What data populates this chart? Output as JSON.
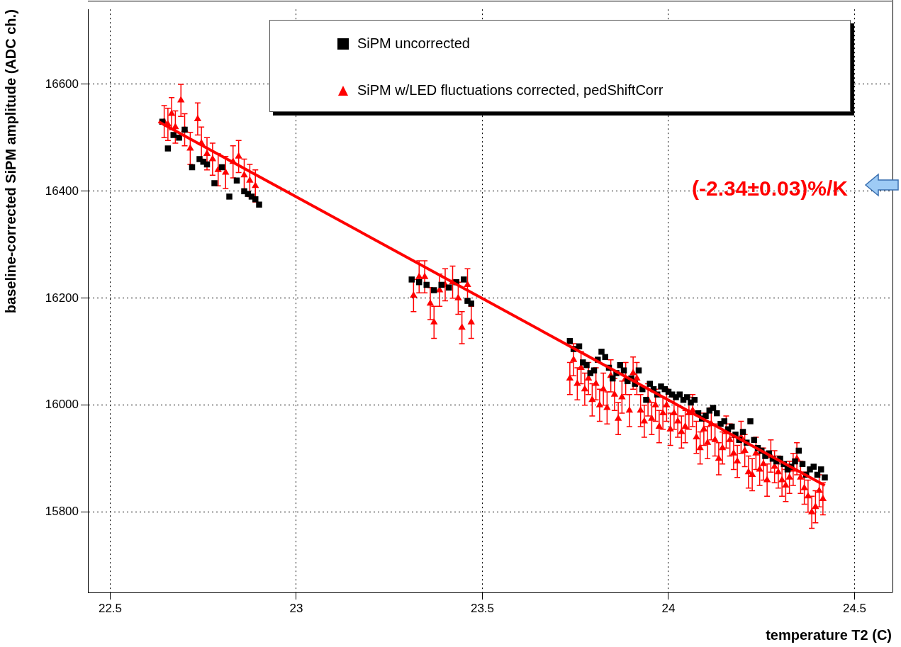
{
  "chart_data": {
    "type": "scatter",
    "xlabel": "temperature T2 (C)",
    "ylabel": "baseline-corrected SiPM amplitude (ADC ch.)",
    "xlim": [
      22.44,
      24.6
    ],
    "ylim": [
      15650,
      16740
    ],
    "xticks": [
      22.5,
      23,
      23.5,
      24,
      24.5
    ],
    "yticks": [
      15800,
      16000,
      16200,
      16400,
      16600
    ],
    "grid": true,
    "legend": "top right",
    "annotations": [
      "(-2.34±0.03)%/K"
    ],
    "series": [
      {
        "name": "SiPM uncorrected",
        "color": "#000000",
        "marker": "square",
        "x": [
          22.64,
          22.655,
          22.67,
          22.685,
          22.7,
          22.72,
          22.74,
          22.75,
          22.76,
          22.78,
          22.8,
          22.82,
          22.84,
          22.86,
          22.87,
          22.88,
          22.89,
          22.9,
          23.31,
          23.33,
          23.35,
          23.37,
          23.39,
          23.41,
          23.43,
          23.45,
          23.46,
          23.47,
          23.735,
          23.745,
          23.76,
          23.77,
          23.78,
          23.79,
          23.8,
          23.81,
          23.82,
          23.83,
          23.84,
          23.85,
          23.86,
          23.87,
          23.88,
          23.89,
          23.9,
          23.91,
          23.92,
          23.93,
          23.94,
          23.95,
          23.96,
          23.97,
          23.98,
          23.99,
          24.0,
          24.01,
          24.02,
          24.03,
          24.04,
          24.05,
          24.06,
          24.07,
          24.08,
          24.09,
          24.1,
          24.11,
          24.12,
          24.13,
          24.14,
          24.15,
          24.16,
          24.17,
          24.18,
          24.19,
          24.2,
          24.21,
          24.22,
          24.23,
          24.24,
          24.25,
          24.26,
          24.27,
          24.28,
          24.29,
          24.3,
          24.31,
          24.32,
          24.33,
          24.34,
          24.35,
          24.36,
          24.37,
          24.38,
          24.39,
          24.4,
          24.41,
          24.42
        ],
        "values": [
          16530,
          16480,
          16505,
          16500,
          16515,
          16445,
          16460,
          16455,
          16450,
          16415,
          16445,
          16390,
          16420,
          16400,
          16395,
          16390,
          16385,
          16375,
          16235,
          16230,
          16225,
          16215,
          16225,
          16220,
          16230,
          16235,
          16195,
          16190,
          16120,
          16105,
          16110,
          16080,
          16075,
          16060,
          16065,
          16085,
          16100,
          16090,
          16070,
          16050,
          16060,
          16075,
          16065,
          16045,
          16050,
          16040,
          16065,
          16030,
          16010,
          16040,
          16030,
          16020,
          16035,
          16030,
          16025,
          16020,
          16015,
          16020,
          16010,
          16015,
          16005,
          16010,
          15985,
          15975,
          15980,
          15990,
          15995,
          15985,
          15965,
          15970,
          15955,
          15960,
          15945,
          15935,
          15950,
          15930,
          15970,
          15935,
          15920,
          15915,
          15905,
          15910,
          15900,
          15895,
          15900,
          15890,
          15880,
          15885,
          15895,
          15915,
          15890,
          15870,
          15880,
          15885,
          15870,
          15880,
          15865
        ]
      },
      {
        "name": "SiPM w/LED fluctuations corrected, pedShiftCorr",
        "color": "#ff0000",
        "marker": "triangle",
        "x": [
          22.645,
          22.655,
          22.665,
          22.675,
          22.69,
          22.7,
          22.715,
          22.735,
          22.745,
          22.76,
          22.775,
          22.79,
          22.81,
          22.83,
          22.845,
          22.86,
          22.875,
          22.89,
          23.315,
          23.33,
          23.345,
          23.36,
          23.37,
          23.385,
          23.4,
          23.42,
          23.435,
          23.445,
          23.46,
          23.47,
          23.735,
          23.745,
          23.755,
          23.765,
          23.775,
          23.785,
          23.795,
          23.805,
          23.815,
          23.825,
          23.835,
          23.845,
          23.855,
          23.865,
          23.875,
          23.885,
          23.895,
          23.905,
          23.915,
          23.925,
          23.935,
          23.945,
          23.955,
          23.965,
          23.975,
          23.985,
          23.995,
          24.005,
          24.015,
          24.025,
          24.035,
          24.045,
          24.055,
          24.065,
          24.075,
          24.085,
          24.095,
          24.105,
          24.115,
          24.125,
          24.135,
          24.145,
          24.155,
          24.165,
          24.175,
          24.185,
          24.195,
          24.205,
          24.215,
          24.225,
          24.235,
          24.245,
          24.255,
          24.265,
          24.275,
          24.285,
          24.295,
          24.305,
          24.315,
          24.325,
          24.335,
          24.345,
          24.355,
          24.365,
          24.375,
          24.385,
          24.395,
          24.405,
          24.415
        ],
        "values": [
          16530,
          16525,
          16545,
          16520,
          16570,
          16515,
          16480,
          16535,
          16490,
          16470,
          16460,
          16440,
          16435,
          16455,
          16465,
          16430,
          16420,
          16410,
          16205,
          16240,
          16240,
          16190,
          16155,
          16215,
          16225,
          16230,
          16200,
          16145,
          16225,
          16155,
          16050,
          16085,
          16040,
          16070,
          16030,
          16050,
          16010,
          16040,
          16000,
          16030,
          15995,
          16055,
          16020,
          15975,
          16015,
          16050,
          15990,
          16060,
          16050,
          15990,
          15970,
          16010,
          15975,
          16000,
          15960,
          15985,
          16000,
          15955,
          15985,
          15970,
          15950,
          15960,
          15985,
          15990,
          15940,
          15920,
          15955,
          15930,
          15965,
          15935,
          15900,
          15920,
          15950,
          15935,
          15910,
          15895,
          15940,
          15915,
          15875,
          15870,
          15910,
          15880,
          15890,
          15860,
          15905,
          15885,
          15875,
          15860,
          15850,
          15865,
          15880,
          15900,
          15865,
          15845,
          15830,
          15800,
          15810,
          15840,
          15825
        ],
        "errors": [
          30,
          30,
          30,
          30,
          30,
          30,
          30,
          30,
          30,
          30,
          30,
          30,
          30,
          30,
          30,
          30,
          30,
          30,
          30,
          30,
          30,
          30,
          30,
          30,
          30,
          30,
          30,
          30,
          30,
          30,
          30,
          30,
          30,
          30,
          30,
          30,
          30,
          30,
          30,
          30,
          30,
          30,
          30,
          30,
          30,
          30,
          30,
          30,
          30,
          30,
          30,
          30,
          30,
          30,
          30,
          30,
          30,
          30,
          30,
          30,
          30,
          30,
          30,
          30,
          30,
          30,
          30,
          30,
          30,
          30,
          30,
          30,
          30,
          30,
          30,
          30,
          30,
          30,
          30,
          30,
          30,
          30,
          30,
          30,
          30,
          30,
          30,
          30,
          30,
          30,
          30,
          30,
          30,
          30,
          30,
          30,
          30,
          30,
          30
        ]
      },
      {
        "type": "line",
        "color": "#ff0000",
        "marker": "none",
        "x": [
          22.63,
          24.42
        ],
        "values": [
          16530,
          15850
        ]
      }
    ]
  }
}
